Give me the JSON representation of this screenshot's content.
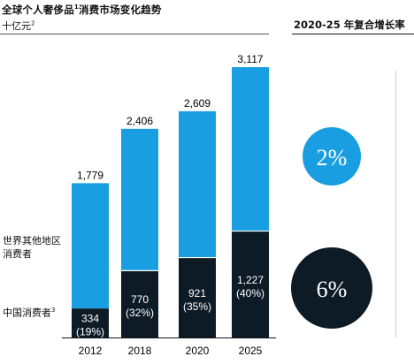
{
  "header": {
    "title": "全球个人奢侈品",
    "title_sup": "1",
    "title_rest": "消费市场变化趋势",
    "unit": "十亿元",
    "unit_sup": "2",
    "cagr_title": "2020-25 年复合增长率"
  },
  "legend": {
    "rest_of_world": "世界其他地区消费者",
    "china": "中国消费者",
    "china_sup": "3"
  },
  "cagr": {
    "rest_of_world_value": "2%",
    "china_value": "6%"
  },
  "colors": {
    "rest_of_world": "#1a9ee2",
    "china": "#0d1b26",
    "rest_badge": "#1a9ee2",
    "china_badge": "#0d1b26",
    "china_text": "#ffffff"
  },
  "chart_data": {
    "type": "bar",
    "stacked": true,
    "categories": [
      "2012",
      "2018",
      "2020",
      "2025"
    ],
    "series": [
      {
        "name": "中国消费者",
        "values": [
          334,
          770,
          921,
          1227
        ],
        "labels": [
          "334",
          "770",
          "921",
          "1,227"
        ],
        "shares": [
          "(19%)",
          "(32%)",
          "(35%)",
          "(40%)"
        ]
      },
      {
        "name": "世界其他地区消费者",
        "values": [
          1445,
          1636,
          1688,
          1890
        ]
      }
    ],
    "totals": [
      1779,
      2406,
      2609,
      3117
    ],
    "total_labels": [
      "1,779",
      "2,406",
      "2,609",
      "3,117"
    ],
    "ylim": [
      0,
      3117
    ]
  }
}
